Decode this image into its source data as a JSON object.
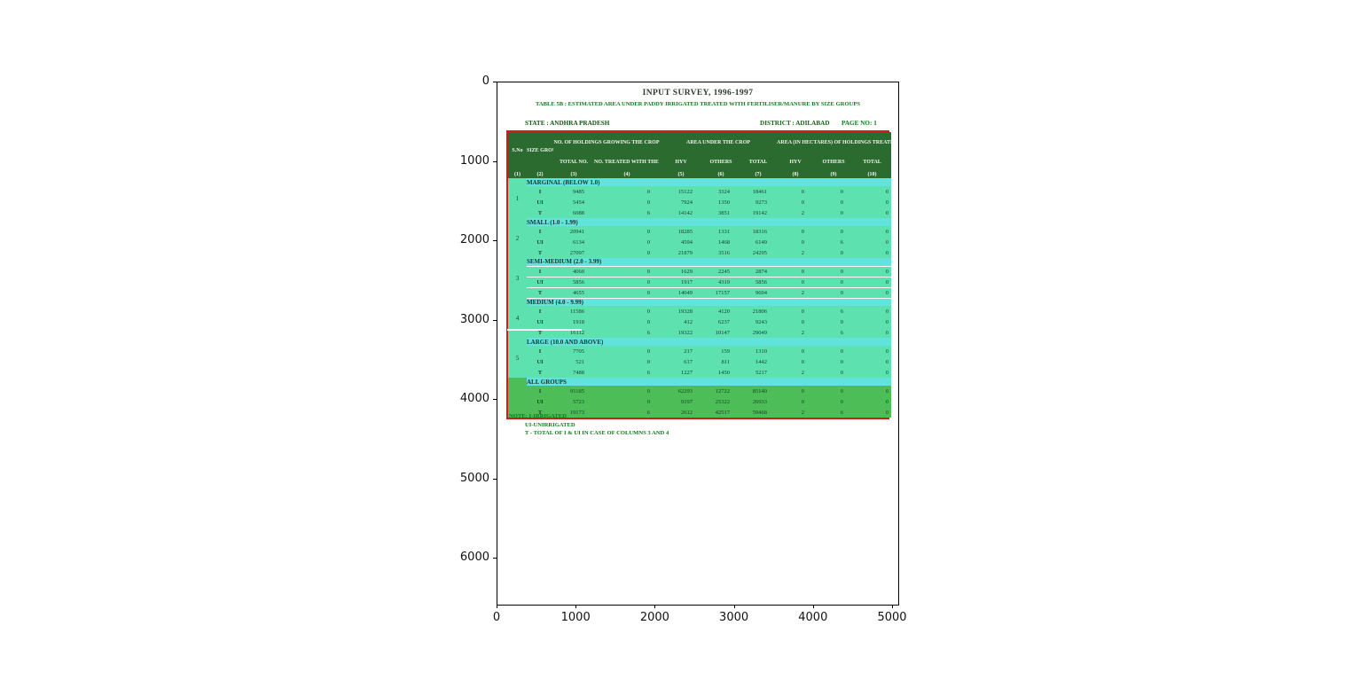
{
  "figure": {
    "x_axis": {
      "ticks": [
        "0",
        "1000",
        "2000",
        "3000",
        "4000",
        "5000"
      ]
    },
    "y_axis": {
      "ticks": [
        "0",
        "1000",
        "2000",
        "3000",
        "4000",
        "5000",
        "6000"
      ]
    }
  },
  "page": {
    "title": "INPUT SURVEY, 1996-1997",
    "subtitle": "TABLE 5B : ESTIMATED AREA UNDER PADDY IRRIGATED TREATED WITH FERTILISER/MANURE BY SIZE GROUPS",
    "state": "STATE : ANDHRA PRADESH",
    "district": "DISTRICT : ADILABAD",
    "page_no": "PAGE NO: 1",
    "notes": [
      "NOTE: I-IRRIGATED",
      "UI-UNIRRIGATED",
      "T - TOTAL OF I & UI IN CASE OF COLUMNS 3 AND 4"
    ]
  },
  "table": {
    "groups": [
      {
        "label": "S.No",
        "span": 1,
        "tall": true
      },
      {
        "label": "SIZE GROUP (HA)",
        "span": 1,
        "tall": true
      },
      {
        "label": "NO. OF HOLDINGS GROWING THE CROP",
        "span": 2,
        "tall": false
      },
      {
        "label": "AREA UNDER THE CROP",
        "span": 3,
        "tall": false
      },
      {
        "label": "AREA (IN HECTARES) OF HOLDINGS TREATED WITH THE MANURE",
        "span": 3,
        "tall": false
      }
    ],
    "sub_headers": [
      "TOTAL NO.",
      "NO. TREATED WITH THE MANURE",
      "HYV",
      "OTHERS",
      "TOTAL",
      "HYV",
      "OTHERS",
      "TOTAL"
    ],
    "column_numbers": [
      "(1)",
      "(2)",
      "(3)",
      "(4)",
      "(5)",
      "(6)",
      "(7)",
      "(8)",
      "(9)",
      "(10)"
    ],
    "blocks": [
      {
        "sno": "1",
        "label": "MARGINAL (BELOW 1.0)",
        "rows": [
          [
            "I",
            "9485",
            "0",
            "15122",
            "3324",
            "18461",
            "0",
            "0",
            "0"
          ],
          [
            "UI",
            "5454",
            "0",
            "7924",
            "1350",
            "9273",
            "0",
            "0",
            "0"
          ],
          [
            "T",
            "6088",
            "6",
            "14142",
            "3851",
            "19142",
            "2",
            "0",
            "0"
          ]
        ]
      },
      {
        "sno": "2",
        "label": "SMALL (1.0 - 1.99)",
        "rows": [
          [
            "I",
            "20941",
            "0",
            "18285",
            "1331",
            "18316",
            "0",
            "0",
            "0"
          ],
          [
            "UI",
            "6134",
            "0",
            "4594",
            "1468",
            "6149",
            "0",
            "6",
            "0"
          ],
          [
            "T",
            "27097",
            "0",
            "21879",
            "3516",
            "24295",
            "2",
            "0",
            "0"
          ]
        ]
      },
      {
        "sno": "3",
        "label": "SEMI-MEDIUM (2.0 - 3.99)",
        "rows": [
          [
            "I",
            "4060",
            "0",
            "1629",
            "2245",
            "2874",
            "0",
            "0",
            "0"
          ],
          [
            "UI",
            "5856",
            "0",
            "1917",
            "4319",
            "5856",
            "0",
            "0",
            "0"
          ],
          [
            "T",
            "4655",
            "0",
            "14049",
            "17157",
            "9604",
            "2",
            "0",
            "0"
          ]
        ]
      },
      {
        "sno": "4",
        "label": "MEDIUM (4.0 - 9.99)",
        "rows": [
          [
            "I",
            "11586",
            "0",
            "19328",
            "4120",
            "21806",
            "0",
            "6",
            "0"
          ],
          [
            "UI",
            "1918",
            "0",
            "412",
            "6237",
            "9243",
            "0",
            "0",
            "0"
          ],
          [
            "T",
            "16112",
            "6",
            "19322",
            "10147",
            "29049",
            "2",
            "6",
            "0"
          ]
        ]
      },
      {
        "sno": "5",
        "label": "LARGE (10.0 AND ABOVE)",
        "rows": [
          [
            "I",
            "7705",
            "0",
            "217",
            "159",
            "1310",
            "0",
            "0",
            "0"
          ],
          [
            "UI",
            "521",
            "0",
            "617",
            "811",
            "1442",
            "0",
            "0",
            "0"
          ],
          [
            "T",
            "7488",
            "6",
            "1227",
            "1450",
            "5217",
            "2",
            "0",
            "0"
          ]
        ]
      },
      {
        "sno": "",
        "label": "ALL GROUPS",
        "rows": [
          [
            "I",
            "91185",
            "0",
            "62293",
            "12722",
            "85140",
            "0",
            "0",
            "0"
          ],
          [
            "UI",
            "5723",
            "0",
            "9197",
            "25322",
            "26933",
            "0",
            "0",
            "0"
          ],
          [
            "T",
            "19173",
            "6",
            "2612",
            "42517",
            "59468",
            "2",
            "6",
            "0"
          ]
        ]
      }
    ]
  },
  "colors": {
    "header_bg": "#2c6b2f",
    "section_bg": "#63e3de",
    "row_bg": "#5ce1af",
    "all_groups_bg": "#4dbd57",
    "table_border": "#d01c1c"
  }
}
